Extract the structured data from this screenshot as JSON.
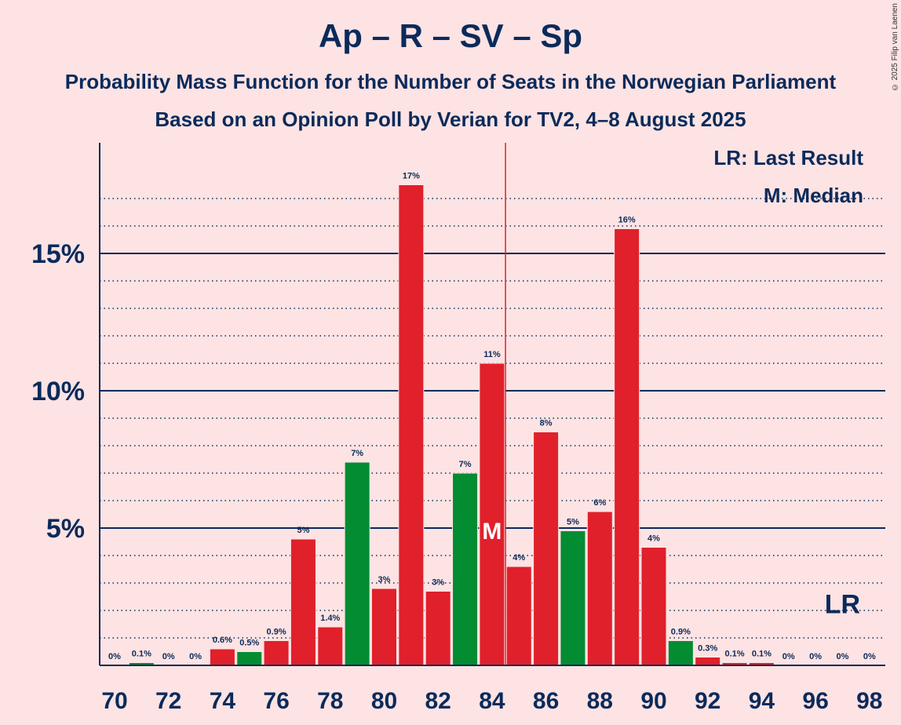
{
  "title": "Ap – R – SV – Sp",
  "subtitle": "Probability Mass Function for the Number of Seats in the Norwegian Parliament",
  "subtitle2": "Based on an Opinion Poll by Verian for TV2, 4–8 August 2025",
  "copyright": "© 2025 Filip van Laenen",
  "legend": {
    "last_result": "LR: Last Result",
    "median": "M: Median"
  },
  "colors": {
    "background": "#fde3e3",
    "text": "#0b2a5b",
    "red": "#e0202a",
    "green": "#038c32",
    "median_line": "#e0202a"
  },
  "chart_data": {
    "type": "bar",
    "x": [
      70,
      71,
      72,
      73,
      74,
      75,
      76,
      77,
      78,
      79,
      80,
      81,
      82,
      83,
      84,
      85,
      86,
      87,
      88,
      89,
      90,
      91,
      92,
      93,
      94,
      95,
      96,
      97,
      98
    ],
    "values": [
      0,
      0.1,
      0,
      0,
      0.6,
      0.5,
      0.9,
      4.6,
      1.4,
      7.4,
      2.8,
      17.5,
      2.7,
      7.0,
      11.0,
      3.6,
      8.5,
      4.9,
      5.6,
      15.9,
      4.3,
      0.9,
      0.3,
      0.1,
      0.1,
      0,
      0,
      0,
      0
    ],
    "labels": [
      "0%",
      "0.1%",
      "0%",
      "0%",
      "0.6%",
      "0.5%",
      "0.9%",
      "5%",
      "1.4%",
      "7%",
      "3%",
      "17%",
      "3%",
      "7%",
      "11%",
      "4%",
      "8%",
      "5%",
      "6%",
      "16%",
      "4%",
      "0.9%",
      "0.3%",
      "0.1%",
      "0.1%",
      "0%",
      "0%",
      "0%",
      "0%"
    ],
    "bar_colors": [
      "red",
      "green",
      "red",
      "red",
      "red",
      "green",
      "red",
      "red",
      "red",
      "green",
      "red",
      "red",
      "red",
      "green",
      "red",
      "red",
      "red",
      "green",
      "red",
      "red",
      "red",
      "green",
      "red",
      "red",
      "red",
      "red",
      "red",
      "red",
      "red"
    ],
    "x_ticks": [
      "70",
      "72",
      "74",
      "76",
      "78",
      "80",
      "82",
      "84",
      "86",
      "88",
      "90",
      "92",
      "94",
      "96",
      "98"
    ],
    "y_ticks": [
      "5%",
      "10%",
      "15%"
    ],
    "ylim": [
      0,
      19
    ],
    "median": 84,
    "median_marker": "M",
    "last_result": 97,
    "last_result_marker": "LR"
  }
}
